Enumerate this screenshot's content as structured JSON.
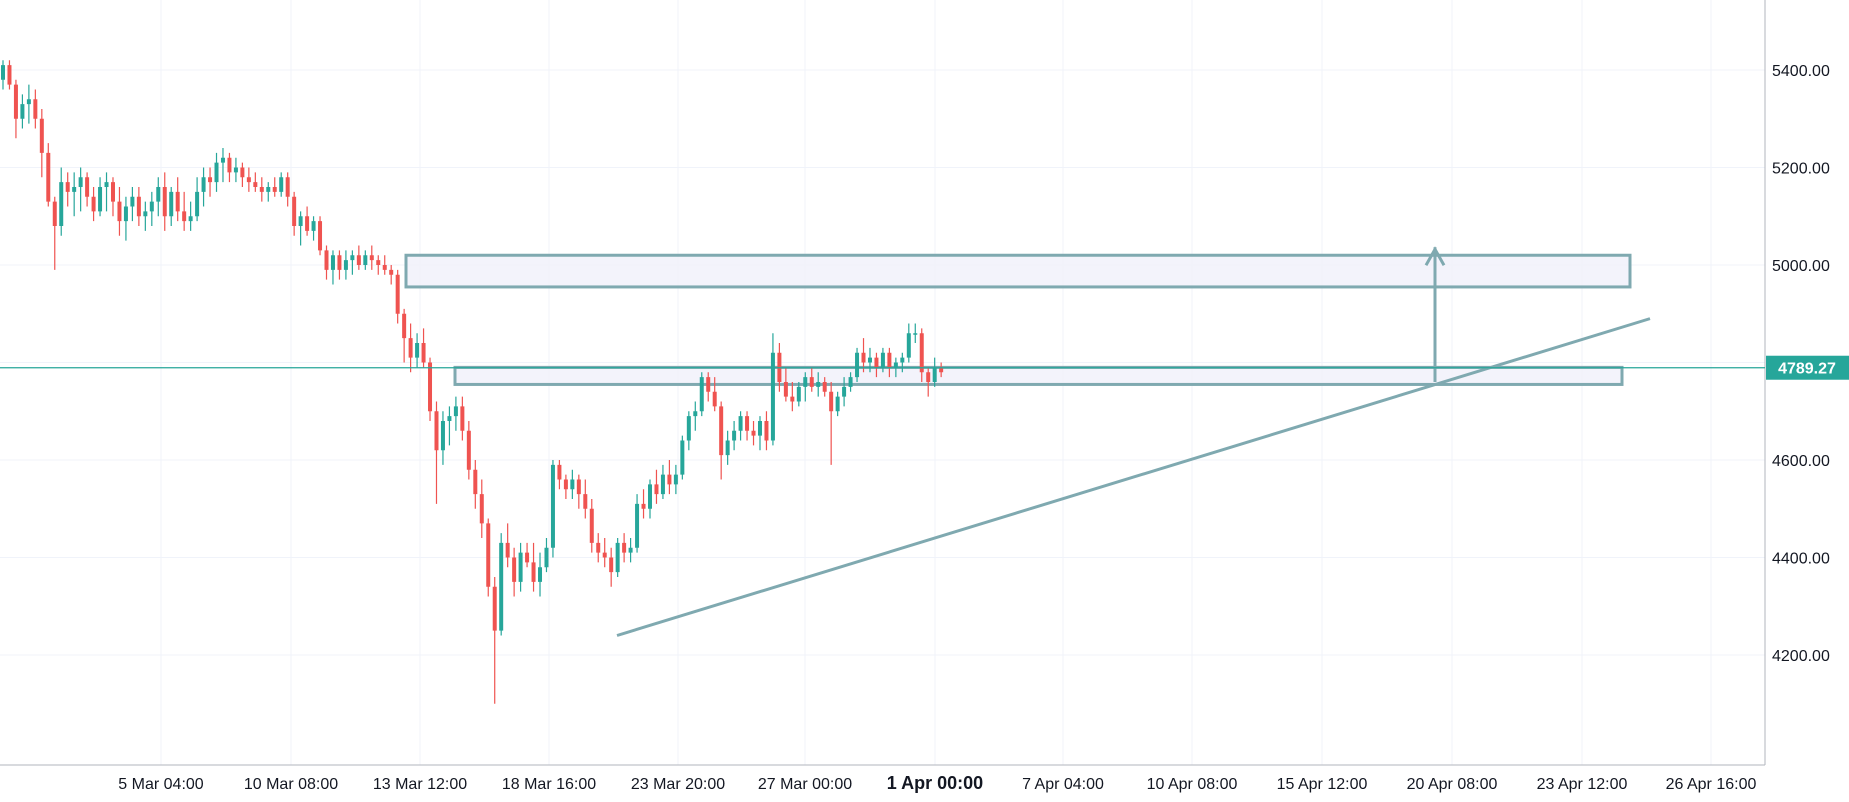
{
  "chart_data": {
    "type": "candlestick",
    "title": "",
    "xlabel": "",
    "ylabel": "",
    "ylim": [
      4000,
      5480
    ],
    "grid": true,
    "x_ticks": [
      "5 Mar 04:00",
      "10 Mar 08:00",
      "13 Mar 12:00",
      "18 Mar 16:00",
      "23 Mar 20:00",
      "27 Mar 00:00",
      "1 Apr 00:00",
      "7 Apr 04:00",
      "10 Apr 08:00",
      "15 Apr 12:00",
      "20 Apr 08:00",
      "23 Apr 12:00",
      "26 Apr 16:00"
    ],
    "x_tick_bold": "1 Apr 00:00",
    "y_ticks": [
      "5400.00",
      "5200.00",
      "5000.00",
      "4600.00",
      "4400.00",
      "4200.00"
    ],
    "y_tick_values": [
      5400,
      5200,
      5000,
      4600,
      4400,
      4200
    ],
    "current_price": 4789.27,
    "current_price_label": "4789.27",
    "colors": {
      "up": "#26a69a",
      "down": "#ef5350",
      "drawing": "#7fa9b0",
      "price_line": "#26a69a",
      "zone_fill": "#f0f0fa",
      "grid": "#f0f3fa",
      "axis": "#b2b5be"
    },
    "candles": [
      [
        5380,
        5420,
        5360,
        5410
      ],
      [
        5410,
        5420,
        5360,
        5370
      ],
      [
        5370,
        5380,
        5260,
        5300
      ],
      [
        5300,
        5350,
        5280,
        5330
      ],
      [
        5330,
        5370,
        5290,
        5340
      ],
      [
        5340,
        5360,
        5280,
        5300
      ],
      [
        5300,
        5320,
        5180,
        5230
      ],
      [
        5230,
        5250,
        5120,
        5130
      ],
      [
        5130,
        5140,
        4990,
        5080
      ],
      [
        5080,
        5200,
        5060,
        5170
      ],
      [
        5170,
        5190,
        5120,
        5150
      ],
      [
        5150,
        5190,
        5100,
        5160
      ],
      [
        5160,
        5200,
        5110,
        5180
      ],
      [
        5180,
        5190,
        5120,
        5140
      ],
      [
        5140,
        5160,
        5090,
        5110
      ],
      [
        5110,
        5180,
        5100,
        5160
      ],
      [
        5160,
        5190,
        5110,
        5170
      ],
      [
        5170,
        5180,
        5100,
        5130
      ],
      [
        5130,
        5160,
        5060,
        5090
      ],
      [
        5090,
        5140,
        5050,
        5120
      ],
      [
        5120,
        5160,
        5090,
        5140
      ],
      [
        5140,
        5160,
        5080,
        5100
      ],
      [
        5100,
        5130,
        5070,
        5110
      ],
      [
        5110,
        5150,
        5080,
        5130
      ],
      [
        5130,
        5180,
        5100,
        5160
      ],
      [
        5160,
        5190,
        5070,
        5100
      ],
      [
        5100,
        5160,
        5080,
        5150
      ],
      [
        5150,
        5180,
        5090,
        5110
      ],
      [
        5110,
        5150,
        5070,
        5090
      ],
      [
        5090,
        5130,
        5070,
        5100
      ],
      [
        5100,
        5180,
        5090,
        5150
      ],
      [
        5150,
        5200,
        5120,
        5180
      ],
      [
        5180,
        5200,
        5140,
        5170
      ],
      [
        5170,
        5230,
        5150,
        5210
      ],
      [
        5210,
        5240,
        5170,
        5220
      ],
      [
        5220,
        5230,
        5170,
        5190
      ],
      [
        5190,
        5220,
        5170,
        5200
      ],
      [
        5200,
        5210,
        5160,
        5180
      ],
      [
        5180,
        5200,
        5150,
        5170
      ],
      [
        5170,
        5190,
        5150,
        5160
      ],
      [
        5160,
        5180,
        5130,
        5150
      ],
      [
        5150,
        5170,
        5130,
        5160
      ],
      [
        5160,
        5180,
        5140,
        5150
      ],
      [
        5150,
        5190,
        5140,
        5180
      ],
      [
        5180,
        5190,
        5120,
        5140
      ],
      [
        5140,
        5150,
        5060,
        5080
      ],
      [
        5080,
        5110,
        5040,
        5100
      ],
      [
        5100,
        5120,
        5060,
        5070
      ],
      [
        5070,
        5100,
        5050,
        5090
      ],
      [
        5090,
        5100,
        5020,
        5030
      ],
      [
        5030,
        5040,
        4970,
        4990
      ],
      [
        4990,
        5030,
        4960,
        5020
      ],
      [
        5020,
        5030,
        4970,
        4990
      ],
      [
        4990,
        5030,
        4970,
        5010
      ],
      [
        5010,
        5030,
        4980,
        5020
      ],
      [
        5020,
        5040,
        4990,
        5000
      ],
      [
        5000,
        5030,
        4990,
        5020
      ],
      [
        5020,
        5040,
        4990,
        5010
      ],
      [
        5010,
        5020,
        4980,
        5000
      ],
      [
        5000,
        5020,
        4980,
        4990
      ],
      [
        4990,
        5000,
        4960,
        4980
      ],
      [
        4980,
        4990,
        4880,
        4900
      ],
      [
        4900,
        4910,
        4800,
        4850
      ],
      [
        4850,
        4880,
        4780,
        4810
      ],
      [
        4810,
        4860,
        4790,
        4840
      ],
      [
        4840,
        4870,
        4790,
        4800
      ],
      [
        4800,
        4810,
        4680,
        4700
      ],
      [
        4700,
        4720,
        4510,
        4620
      ],
      [
        4620,
        4700,
        4590,
        4680
      ],
      [
        4680,
        4710,
        4630,
        4690
      ],
      [
        4690,
        4730,
        4660,
        4710
      ],
      [
        4710,
        4730,
        4640,
        4660
      ],
      [
        4660,
        4680,
        4560,
        4580
      ],
      [
        4580,
        4600,
        4500,
        4530
      ],
      [
        4530,
        4560,
        4440,
        4470
      ],
      [
        4470,
        4480,
        4320,
        4340
      ],
      [
        4340,
        4360,
        4100,
        4250
      ],
      [
        4250,
        4450,
        4240,
        4430
      ],
      [
        4430,
        4470,
        4380,
        4400
      ],
      [
        4400,
        4420,
        4320,
        4350
      ],
      [
        4350,
        4430,
        4330,
        4410
      ],
      [
        4410,
        4430,
        4380,
        4390
      ],
      [
        4390,
        4430,
        4330,
        4350
      ],
      [
        4350,
        4410,
        4320,
        4380
      ],
      [
        4380,
        4440,
        4370,
        4420
      ],
      [
        4420,
        4600,
        4400,
        4590
      ],
      [
        4590,
        4600,
        4540,
        4560
      ],
      [
        4560,
        4570,
        4520,
        4540
      ],
      [
        4540,
        4580,
        4520,
        4560
      ],
      [
        4560,
        4570,
        4500,
        4530
      ],
      [
        4530,
        4560,
        4480,
        4500
      ],
      [
        4500,
        4520,
        4410,
        4430
      ],
      [
        4430,
        4450,
        4390,
        4410
      ],
      [
        4410,
        4440,
        4380,
        4400
      ],
      [
        4400,
        4420,
        4340,
        4370
      ],
      [
        4370,
        4440,
        4360,
        4430
      ],
      [
        4430,
        4450,
        4390,
        4410
      ],
      [
        4410,
        4440,
        4390,
        4420
      ],
      [
        4420,
        4530,
        4410,
        4510
      ],
      [
        4510,
        4540,
        4480,
        4500
      ],
      [
        4500,
        4560,
        4480,
        4550
      ],
      [
        4550,
        4580,
        4510,
        4530
      ],
      [
        4530,
        4590,
        4520,
        4570
      ],
      [
        4570,
        4600,
        4530,
        4550
      ],
      [
        4550,
        4590,
        4530,
        4570
      ],
      [
        4570,
        4650,
        4560,
        4640
      ],
      [
        4640,
        4700,
        4620,
        4690
      ],
      [
        4690,
        4720,
        4660,
        4700
      ],
      [
        4700,
        4780,
        4690,
        4770
      ],
      [
        4770,
        4780,
        4720,
        4740
      ],
      [
        4740,
        4770,
        4700,
        4710
      ],
      [
        4710,
        4720,
        4560,
        4610
      ],
      [
        4610,
        4660,
        4590,
        4640
      ],
      [
        4640,
        4680,
        4620,
        4660
      ],
      [
        4660,
        4700,
        4640,
        4690
      ],
      [
        4690,
        4700,
        4640,
        4660
      ],
      [
        4660,
        4680,
        4630,
        4650
      ],
      [
        4650,
        4690,
        4620,
        4680
      ],
      [
        4680,
        4700,
        4620,
        4640
      ],
      [
        4640,
        4860,
        4630,
        4820
      ],
      [
        4820,
        4840,
        4740,
        4760
      ],
      [
        4760,
        4790,
        4720,
        4730
      ],
      [
        4730,
        4760,
        4700,
        4720
      ],
      [
        4720,
        4760,
        4710,
        4750
      ],
      [
        4750,
        4780,
        4720,
        4770
      ],
      [
        4770,
        4790,
        4740,
        4750
      ],
      [
        4750,
        4780,
        4730,
        4760
      ],
      [
        4760,
        4770,
        4730,
        4740
      ],
      [
        4740,
        4760,
        4590,
        4700
      ],
      [
        4700,
        4740,
        4690,
        4730
      ],
      [
        4730,
        4770,
        4710,
        4750
      ],
      [
        4750,
        4780,
        4740,
        4770
      ],
      [
        4770,
        4830,
        4760,
        4820
      ],
      [
        4820,
        4850,
        4780,
        4800
      ],
      [
        4800,
        4830,
        4780,
        4810
      ],
      [
        4810,
        4820,
        4770,
        4790
      ],
      [
        4790,
        4830,
        4780,
        4820
      ],
      [
        4820,
        4830,
        4770,
        4790
      ],
      [
        4790,
        4810,
        4770,
        4800
      ],
      [
        4800,
        4820,
        4780,
        4810
      ],
      [
        4810,
        4880,
        4800,
        4860
      ],
      [
        4860,
        4880,
        4840,
        4860
      ],
      [
        4860,
        4870,
        4760,
        4780
      ],
      [
        4780,
        4790,
        4730,
        4760
      ],
      [
        4760,
        4810,
        4750,
        4790
      ],
      [
        4790,
        4800,
        4770,
        4780
      ]
    ],
    "zones": [
      {
        "from_date": "13 Mar 12:00",
        "to_date": "23 Apr 12:00",
        "top": 5020,
        "bottom": 4955
      },
      {
        "from_date": "13 Mar 12:00",
        "to_date": "23 Apr 12:00",
        "top": 4790,
        "bottom": 4755
      }
    ],
    "trendline": {
      "start": {
        "date": "20 Mar",
        "price": 4240
      },
      "end": {
        "date": "24 Apr",
        "price": 4890
      }
    },
    "target_arrow": {
      "date": "20 Apr 08:00",
      "from_price": 4760,
      "to_price": 5020
    }
  }
}
